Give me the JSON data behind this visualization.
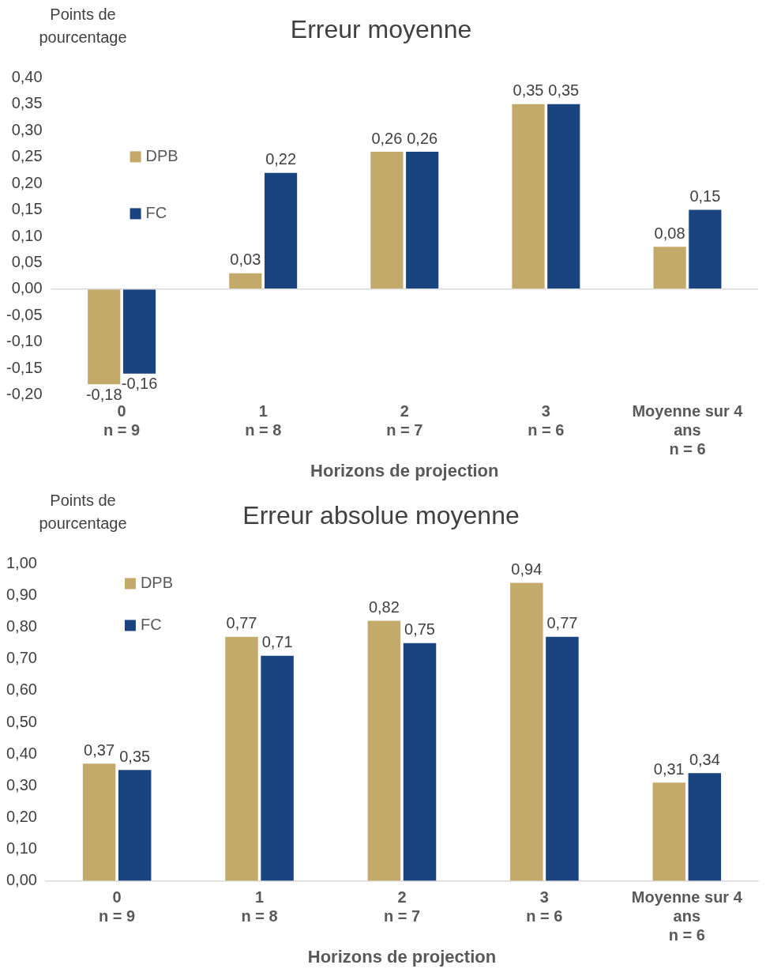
{
  "chart_data": [
    {
      "type": "bar",
      "title": "Erreur moyenne",
      "ylabel": "Points de\npourcentage",
      "xlabel": "Horizons de projection",
      "categories": [
        "0\nn = 9",
        "1\nn = 8",
        "2\nn = 7",
        "3\nn = 6",
        "Moyenne sur 4\nans\nn = 6"
      ],
      "series": [
        {
          "name": "DPB",
          "color": "#c4aa6a",
          "values": [
            -0.18,
            0.03,
            0.26,
            0.35,
            0.08
          ],
          "value_labels": [
            "-0,18",
            "0,03",
            "0,26",
            "0,35",
            "0,08"
          ]
        },
        {
          "name": "FC",
          "color": "#1a4480",
          "values": [
            -0.16,
            0.22,
            0.26,
            0.35,
            0.15
          ],
          "value_labels": [
            "-0,16",
            "0,22",
            "0,26",
            "0,35",
            "0,15"
          ]
        }
      ],
      "ref_lines": [
        {
          "axis": "y",
          "value": 0,
          "color": "#d9d9d9"
        }
      ],
      "ylim": [
        -0.2,
        0.4
      ],
      "yticks": [
        {
          "value": -0.2,
          "label": "-0,20"
        },
        {
          "value": -0.15,
          "label": "-0,15"
        },
        {
          "value": -0.1,
          "label": "-0,10"
        },
        {
          "value": -0.05,
          "label": "-0,05"
        },
        {
          "value": 0,
          "label": "0,00"
        },
        {
          "value": 0.05,
          "label": "0,05"
        },
        {
          "value": 0.1,
          "label": "0,10"
        },
        {
          "value": 0.15,
          "label": "0,15"
        },
        {
          "value": 0.2,
          "label": "0,20"
        },
        {
          "value": 0.25,
          "label": "0,25"
        },
        {
          "value": 0.3,
          "label": "0,30"
        },
        {
          "value": 0.35,
          "label": "0,35"
        },
        {
          "value": 0.4,
          "label": "0,40"
        }
      ],
      "grid": false,
      "legend": "top left"
    },
    {
      "type": "bar",
      "title": "Erreur absolue moyenne",
      "ylabel": "Points de\npourcentage",
      "xlabel": "Horizons de projection",
      "categories": [
        "0\nn = 9",
        "1\nn = 8",
        "2\nn = 7",
        "3\nn = 6",
        "Moyenne sur 4\nans\nn = 6"
      ],
      "series": [
        {
          "name": "DPB",
          "color": "#c4aa6a",
          "values": [
            0.37,
            0.77,
            0.82,
            0.94,
            0.31
          ],
          "value_labels": [
            "0,37",
            "0,77",
            "0,82",
            "0,94",
            "0,31"
          ]
        },
        {
          "name": "FC",
          "color": "#1a4480",
          "values": [
            0.35,
            0.71,
            0.75,
            0.77,
            0.34
          ],
          "value_labels": [
            "0,35",
            "0,71",
            "0,75",
            "0,77",
            "0,34"
          ]
        }
      ],
      "ylim": [
        0,
        1
      ],
      "yticks": [
        {
          "value": 0,
          "label": "0,00"
        },
        {
          "value": 0.1,
          "label": "0,10"
        },
        {
          "value": 0.2,
          "label": "0,20"
        },
        {
          "value": 0.3,
          "label": "0,30"
        },
        {
          "value": 0.4,
          "label": "0,40"
        },
        {
          "value": 0.5,
          "label": "0,50"
        },
        {
          "value": 0.6,
          "label": "0,60"
        },
        {
          "value": 0.7,
          "label": "0,70"
        },
        {
          "value": 0.8,
          "label": "0,80"
        },
        {
          "value": 0.9,
          "label": "0,90"
        },
        {
          "value": 1,
          "label": "1,00"
        }
      ],
      "grid": false,
      "legend": "top left"
    }
  ]
}
